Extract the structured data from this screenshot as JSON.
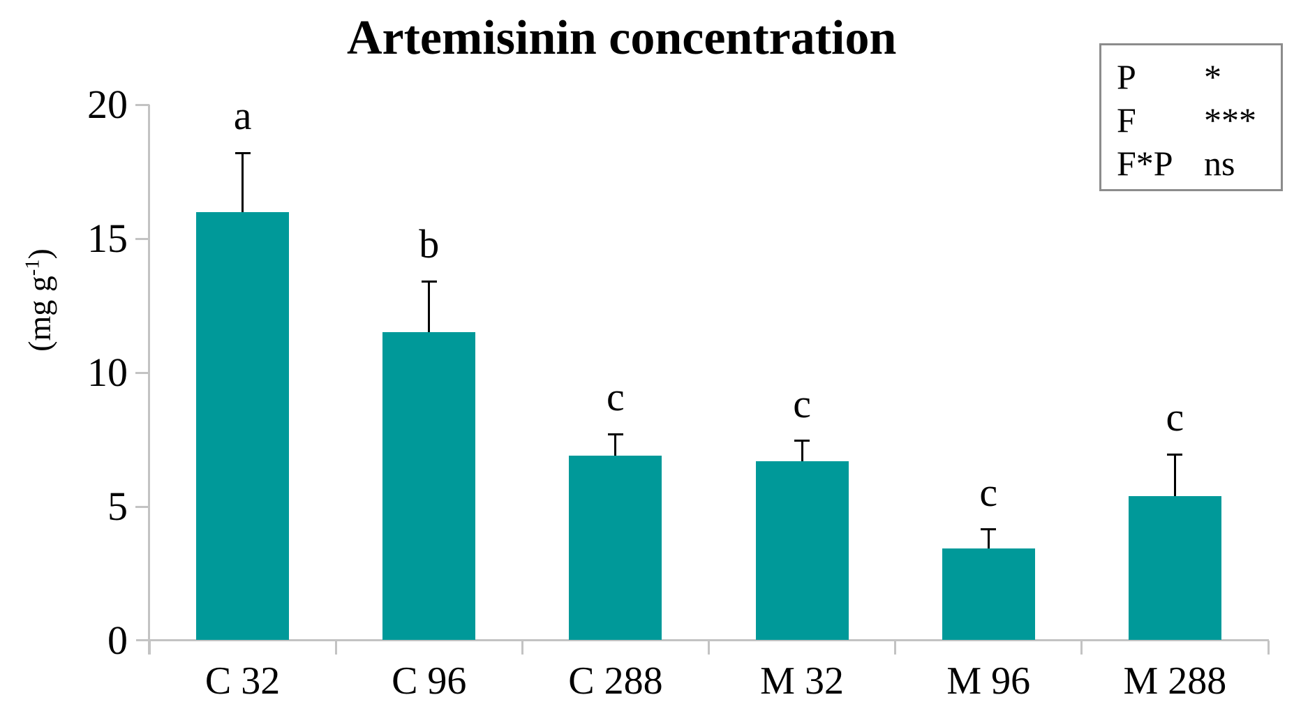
{
  "chart_data": {
    "type": "bar",
    "title": "Artemisinin concentration",
    "ylabel": "(mg g-1)",
    "ylabel_prefix": "(mg g",
    "ylabel_sup": "-1",
    "ylabel_suffix": ")",
    "categories": [
      "C 32",
      "C 96",
      "C 288",
      "M 32",
      "M 96",
      "M 288"
    ],
    "values": [
      16.0,
      11.5,
      6.9,
      6.7,
      3.45,
      5.4
    ],
    "errors_upper": [
      2.2,
      1.9,
      0.8,
      0.75,
      0.7,
      1.55
    ],
    "sig_letters": [
      "a",
      "b",
      "c",
      "c",
      "c",
      "c"
    ],
    "ylim": [
      0,
      20
    ],
    "yticks": [
      0,
      5,
      10,
      15,
      20
    ],
    "grid": false,
    "legend_position": "top-right",
    "bar_color": "#009999",
    "axis_color": "#c3c3c3",
    "error_bar_color": "#000000"
  },
  "stats_box": {
    "border_color": "#8c8c8c",
    "rows": [
      {
        "label": "P",
        "value": "*"
      },
      {
        "label": "F",
        "value": "***"
      },
      {
        "label": "F*P",
        "value": "ns"
      }
    ]
  }
}
